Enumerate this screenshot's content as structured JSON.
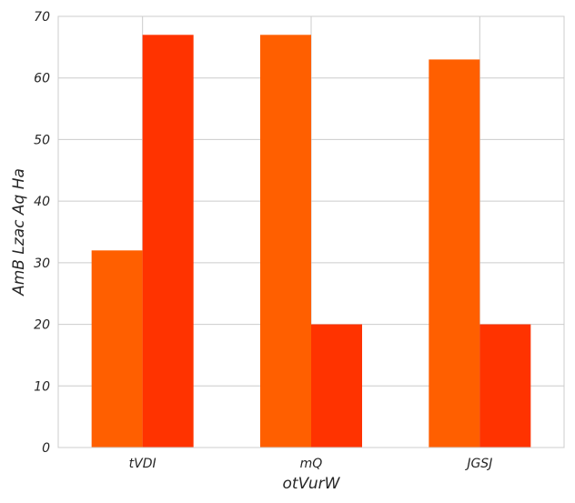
{
  "chart_data": {
    "type": "bar",
    "title": "",
    "xlabel": "otVurW",
    "ylabel": "AmB Lzac Aq Ha",
    "categories": [
      "tVDI",
      "mQ",
      "JGSJ"
    ],
    "series": [
      {
        "values": [
          32,
          67,
          63
        ],
        "color": "#ff5f00"
      },
      {
        "values": [
          67,
          20,
          20
        ],
        "color": "#ff3300"
      }
    ],
    "ylim": [
      0,
      70
    ],
    "yticks": [
      0,
      10,
      20,
      30,
      40,
      50,
      60,
      70
    ],
    "grid": true,
    "legend": "none"
  }
}
